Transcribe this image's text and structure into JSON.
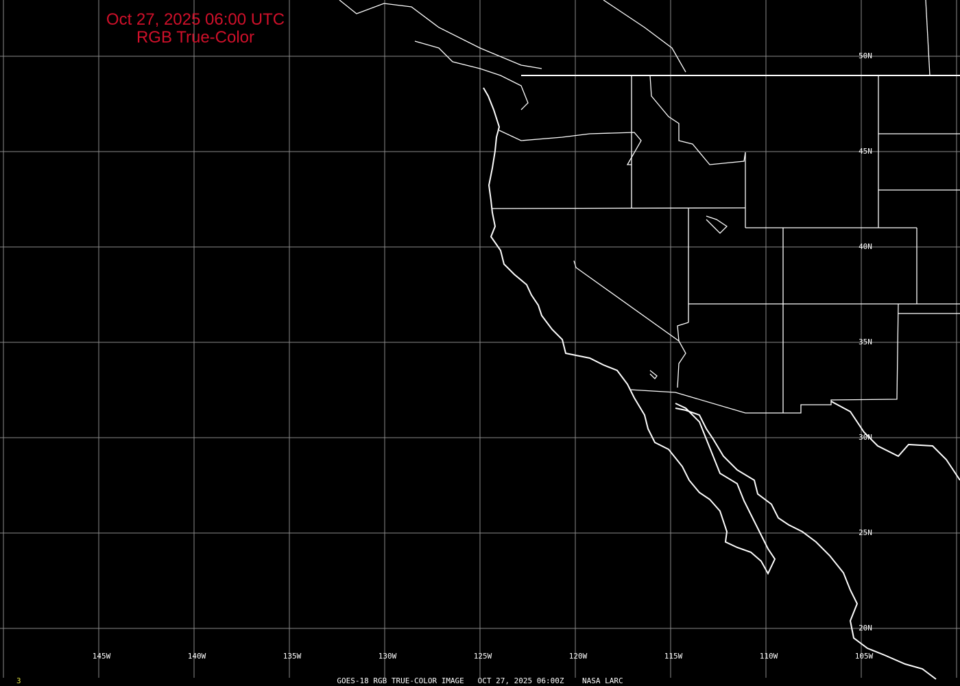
{
  "header": {
    "title_line1": "Oct 27, 2025 06:00 UTC",
    "title_line2": "RGB True-Color"
  },
  "footer": {
    "frame_number": "3",
    "caption": "GOES-18 RGB TRUE-COLOR IMAGE   OCT 27, 2025 06:00Z    NASA LARC"
  },
  "map": {
    "longitude_labels": [
      "145W",
      "140W",
      "135W",
      "130W",
      "125W",
      "120W",
      "115W",
      "110W",
      "105W"
    ],
    "latitude_labels": [
      "50N",
      "45N",
      "40N",
      "35N",
      "30N",
      "25N",
      "20N"
    ],
    "colors": {
      "background": "#000000",
      "grid": "#8c8c8c",
      "coastline": "#ffffff",
      "title": "#d0102a",
      "frame_number": "#e0e040"
    }
  }
}
